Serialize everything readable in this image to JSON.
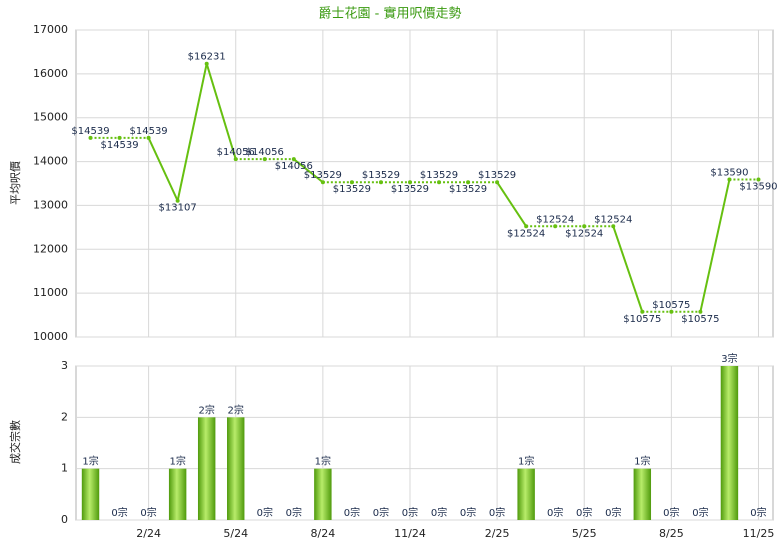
{
  "chart_data": [
    {
      "type": "line",
      "title": "爵士花園 - 實用呎價走勢",
      "y_label": "平均呎價",
      "color": "#66c010",
      "values": [
        14539,
        14539,
        14539,
        13107,
        16231,
        14056,
        14056,
        14056,
        13529,
        13529,
        13529,
        13529,
        13529,
        13529,
        13529,
        12524,
        12524,
        12524,
        12524,
        10575,
        10575,
        10575,
        13590,
        13590
      ],
      "value_labels": [
        "$14539",
        "$14539",
        "$14539",
        "$13107",
        "$16231",
        "$14056",
        "$14056",
        "$14056",
        "$13529",
        "$13529",
        "$13529",
        "$13529",
        "$13529",
        "$13529",
        "$13529",
        "$12524",
        "$12524",
        "$12524",
        "$12524",
        "$10575",
        "$10575",
        "$10575",
        "$13590",
        "$13590"
      ],
      "ylim": [
        10000,
        17000
      ],
      "yticks": [
        10000,
        11000,
        12000,
        13000,
        14000,
        15000,
        16000,
        17000
      ],
      "grid": true
    },
    {
      "type": "bar",
      "y_label": "成交宗數",
      "color": "#6cbf1c",
      "categories": [
        null,
        null,
        "2/24",
        null,
        null,
        "5/24",
        null,
        null,
        "8/24",
        null,
        null,
        "11/24",
        null,
        null,
        "2/25",
        null,
        null,
        "5/25",
        null,
        null,
        "8/25",
        null,
        null,
        "11/25"
      ],
      "values": [
        1,
        0,
        0,
        1,
        2,
        2,
        0,
        0,
        1,
        0,
        0,
        0,
        0,
        0,
        0,
        1,
        0,
        0,
        0,
        1,
        0,
        0,
        3,
        0
      ],
      "value_labels": [
        "1宗",
        "0宗",
        "0宗",
        "1宗",
        "2宗",
        "2宗",
        "0宗",
        "0宗",
        "1宗",
        "0宗",
        "0宗",
        "0宗",
        "0宗",
        "0宗",
        "0宗",
        "1宗",
        "0宗",
        "0宗",
        "0宗",
        "1宗",
        "0宗",
        "0宗",
        "3宗",
        "0宗"
      ],
      "ylim": [
        0,
        3
      ],
      "yticks": [
        0,
        1,
        2,
        3
      ],
      "grid": true
    }
  ]
}
